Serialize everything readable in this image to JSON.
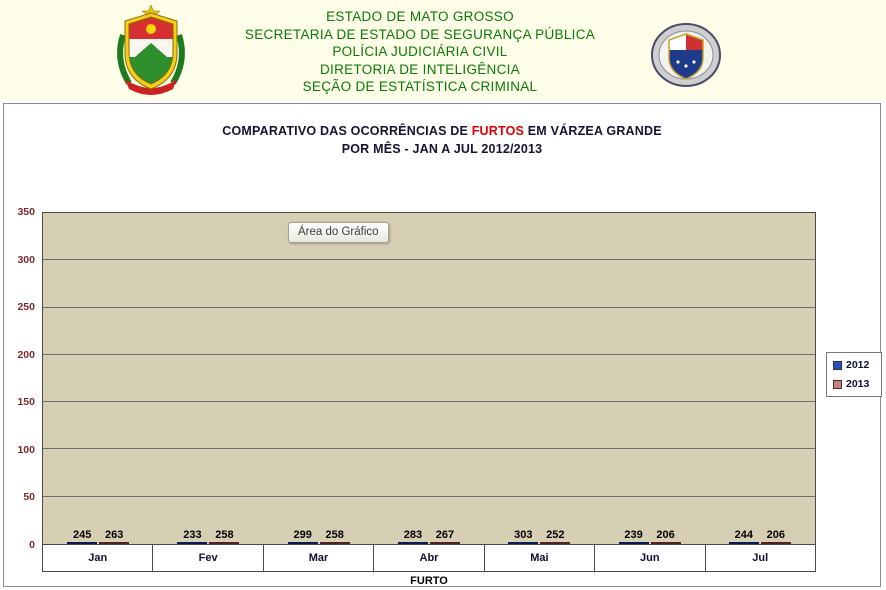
{
  "header": {
    "org_lines": [
      "ESTADO  DE  MATO  GROSSO",
      "SECRETARIA  DE ESTADO  DE  SEGURANÇA  PÚBLICA",
      "POLÍCIA  JUDICIÁRIA  CIVIL",
      "DIRETORIA  DE INTELIGÊNCIA",
      "SEÇÃO  DE ESTATÍSTICA  CRIMINAL"
    ]
  },
  "chart": {
    "title": {
      "prefix": "COMPARATIVO DAS OCORRÊNCIAS  DE ",
      "highlight": "FURTOS",
      "suffix": " EM VÁRZEA GRANDE",
      "line2": "POR MÊS - JAN A JUL 2012/2013"
    },
    "tooltip": "Área do Gráfico"
  },
  "chart_data": {
    "type": "bar",
    "title": "COMPARATIVO DAS OCORRÊNCIAS DE FURTOS EM VÁRZEA GRANDE POR MÊS - JAN A JUL 2012/2013",
    "categories": [
      "Jan",
      "Fev",
      "Mar",
      "Abr",
      "Mai",
      "Jun",
      "Jul"
    ],
    "series": [
      {
        "name": "2012",
        "color": "#2a50c8",
        "values": [
          245,
          233,
          299,
          283,
          303,
          239,
          244
        ]
      },
      {
        "name": "2013",
        "color": "#c87f7a",
        "values": [
          263,
          258,
          258,
          267,
          252,
          206,
          206
        ]
      }
    ],
    "xlabel": "FURTO",
    "ylabel": "",
    "ylim": [
      0,
      350
    ],
    "ytick_step": 50,
    "grid": true,
    "legend_position": "right"
  }
}
